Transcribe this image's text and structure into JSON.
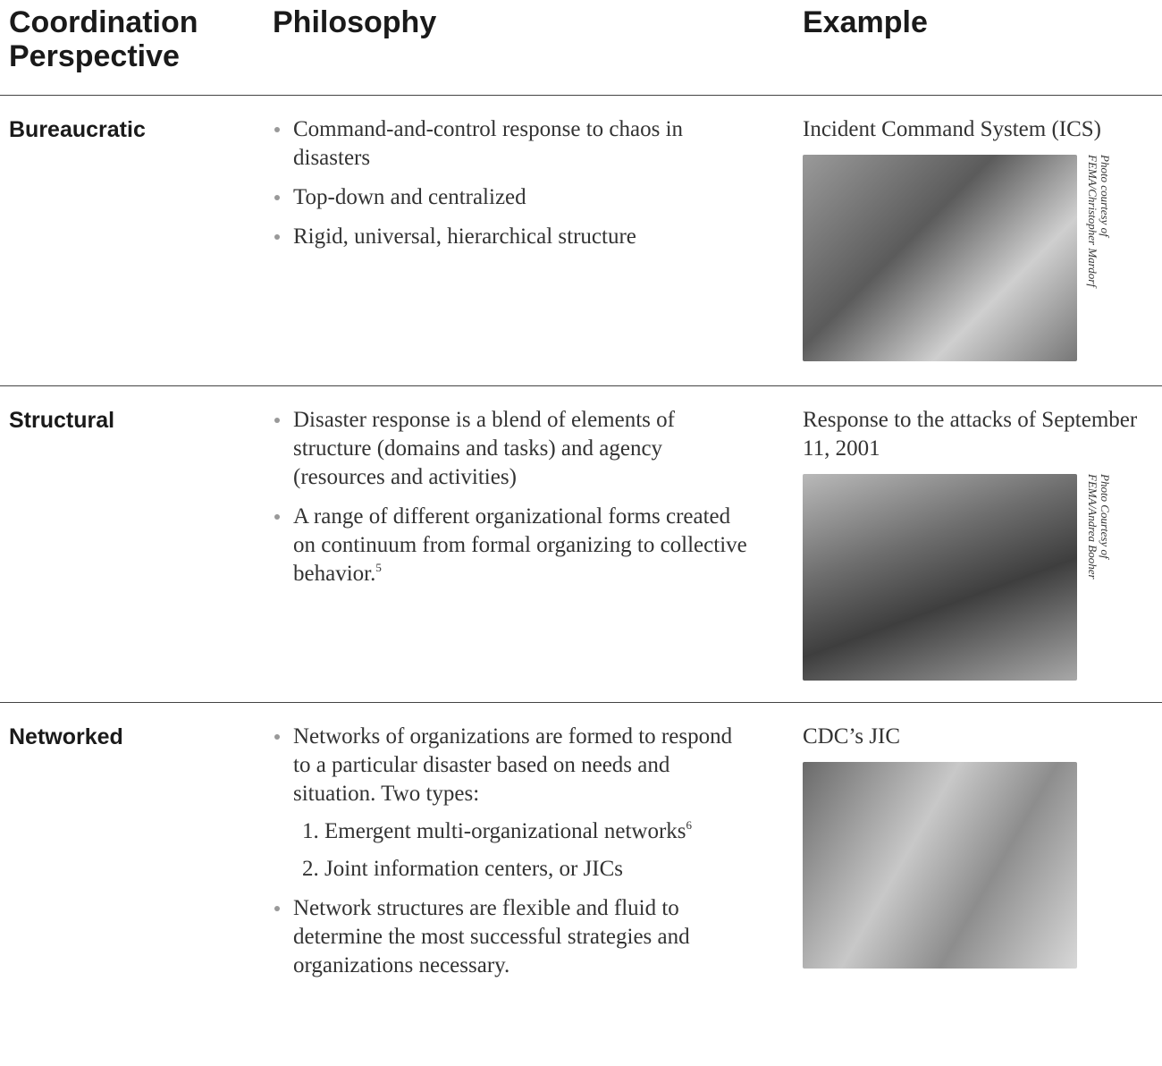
{
  "header": {
    "perspective": "Coordination Perspective",
    "philosophy": "Philosophy",
    "example": "Example"
  },
  "rows": [
    {
      "perspective": "Bureaucratic",
      "bullets": [
        {
          "text": "Command-and-control response to chaos in disasters"
        },
        {
          "text": "Top-down and centralized"
        },
        {
          "text": "Rigid, universal, hierarchical structure"
        }
      ],
      "example": "Incident Command System (ICS)",
      "photo_credit": [
        "Photo courtesy of",
        "FEMA/Christopher Mardorf"
      ]
    },
    {
      "perspective": "Structural",
      "bullets": [
        {
          "text": "Disaster response is a blend of elements of structure (domains and tasks) and agency (resources and activities)"
        },
        {
          "text": "A range of different organizational forms created on continuum from formal organizing to collective behavior.",
          "sup": "5"
        }
      ],
      "example": "Response to the attacks of September 11, 2001",
      "photo_credit": [
        "Photo Courtesy of",
        "FEMA/Andrea Booher"
      ]
    },
    {
      "perspective": "Networked",
      "bullets": [
        {
          "text": "Networks of organizations are formed to respond to a particular disaster based on needs and situation. Two types:",
          "items": [
            {
              "text": "1. Emergent multi-organizational networks",
              "sup": "6"
            },
            {
              "text": "2. Joint information centers, or JICs"
            }
          ]
        },
        {
          "text": "Network structures are flexible and fluid to determine the most successful strategies and organizations necessary."
        }
      ],
      "example": "CDC’s JIC"
    }
  ]
}
